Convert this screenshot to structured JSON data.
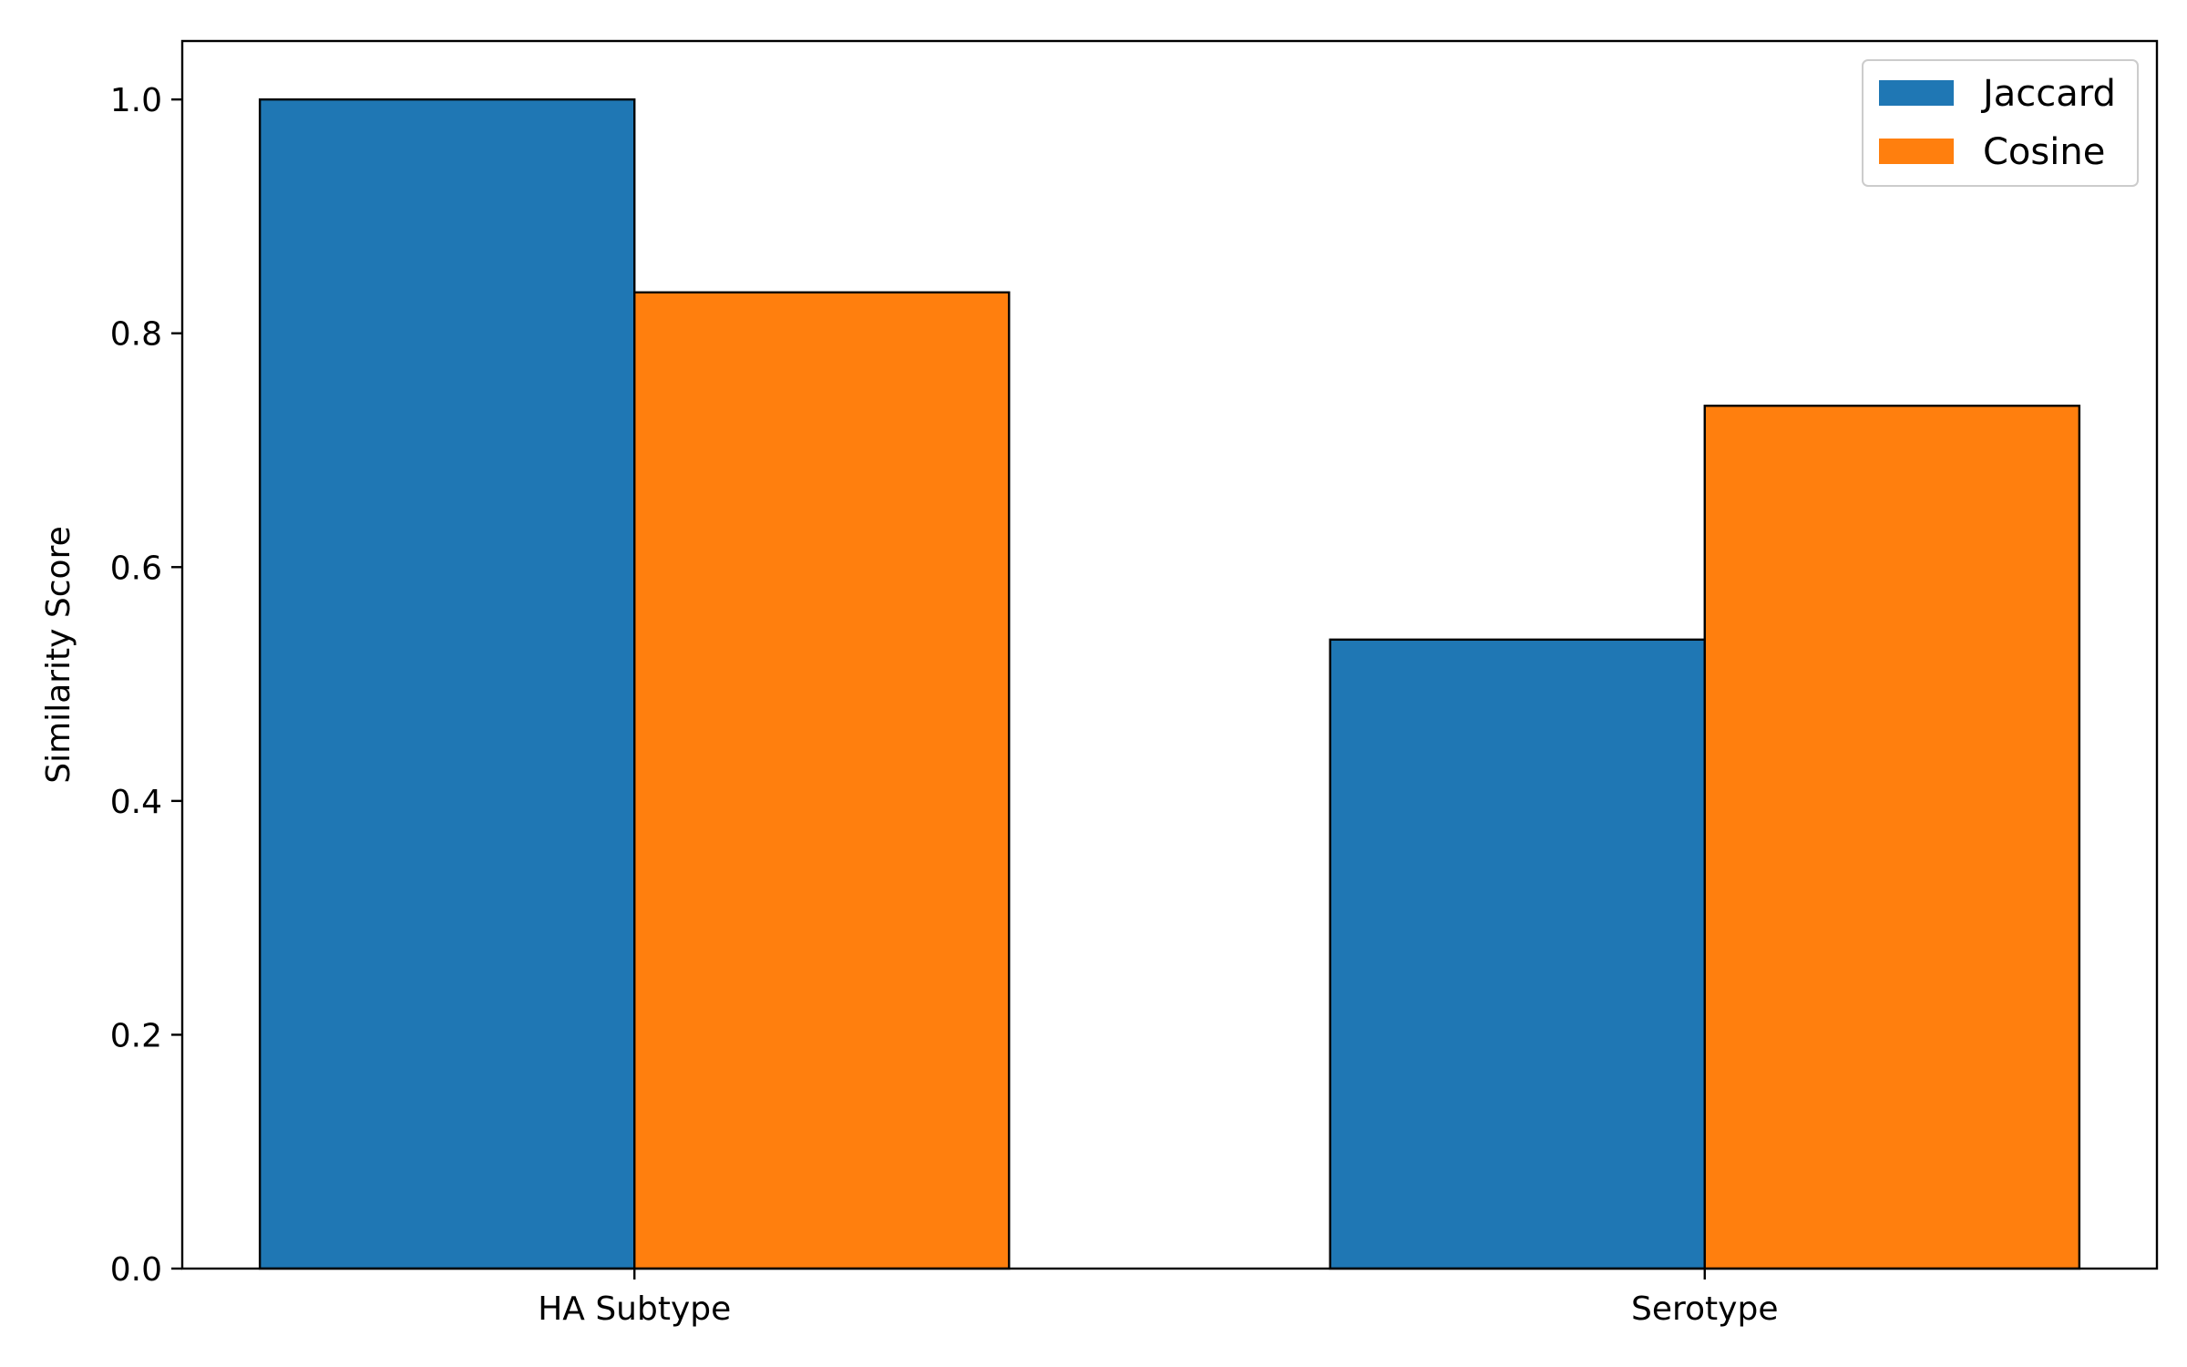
{
  "chart_data": {
    "type": "bar",
    "categories": [
      "HA Subtype",
      "Serotype"
    ],
    "series": [
      {
        "name": "Jaccard",
        "values": [
          1.0,
          0.538
        ],
        "color": "#1f77b4"
      },
      {
        "name": "Cosine",
        "values": [
          0.835,
          0.738
        ],
        "color": "#ff7f0e"
      }
    ],
    "title": "",
    "xlabel": "",
    "ylabel": "Similarity Score",
    "ylim": [
      0,
      1.05
    ],
    "yticks": [
      0.0,
      0.2,
      0.4,
      0.6,
      0.8,
      1.0
    ],
    "ytick_labels": [
      "0.0",
      "0.2",
      "0.4",
      "0.6",
      "0.8",
      "1.0"
    ],
    "grid": false,
    "legend_position": "top-right",
    "bar_edge_color": "#000000"
  }
}
